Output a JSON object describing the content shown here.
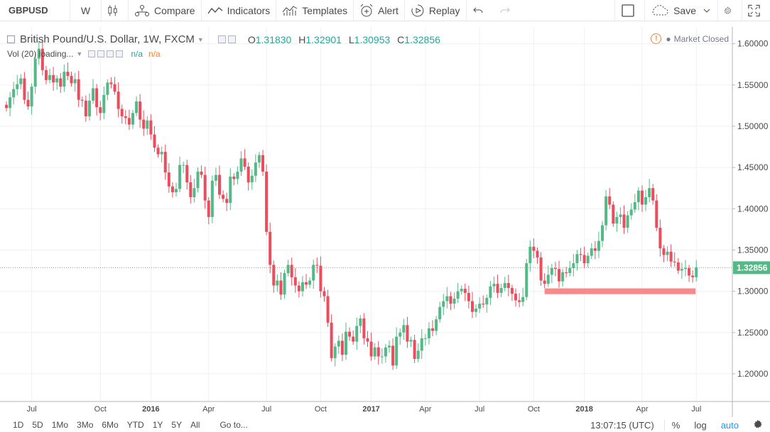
{
  "toolbar": {
    "symbol": "GBPUSD",
    "interval": "W",
    "compare": "Compare",
    "indicators": "Indicators",
    "templates": "Templates",
    "alert": "Alert",
    "replay": "Replay",
    "save": "Save"
  },
  "legend": {
    "title": "British Pound/U.S. Dollar, 1W, FXCM",
    "o_label": "O",
    "o_value": "1.31830",
    "h_label": "H",
    "h_value": "1.32901",
    "l_label": "L",
    "l_value": "1.30953",
    "c_label": "C",
    "c_value": "1.32856"
  },
  "volume": {
    "label": "Vol (20) loading...",
    "value1": "n/a",
    "value2": "n/a"
  },
  "market_status": "Market Closed",
  "bottombar": {
    "ranges": [
      "1D",
      "5D",
      "1Mo",
      "3Mo",
      "6Mo",
      "YTD",
      "1Y",
      "5Y",
      "All"
    ],
    "goto": "Go to...",
    "time": "13:07:15 (UTC)",
    "percent": "%",
    "log": "log",
    "auto": "auto"
  },
  "colors": {
    "up": "#53b987",
    "down": "#eb4d5c",
    "zone": "#f88989",
    "last_price_bg": "#53b987"
  },
  "chart_data": {
    "type": "candlestick",
    "title": "British Pound/U.S. Dollar, 1W, FXCM",
    "ylim": [
      1.175,
      1.61
    ],
    "y_ticks": [
      1.2,
      1.25,
      1.3,
      1.35,
      1.4,
      1.45,
      1.5,
      1.55,
      1.6
    ],
    "x_ticks": [
      "Jul",
      "Oct",
      "2016",
      "Apr",
      "Jul",
      "Oct",
      "2017",
      "Apr",
      "Jul",
      "Oct",
      "2018",
      "Apr",
      "Jul"
    ],
    "last_price": 1.32856,
    "last_price_label": "1.32856",
    "support_zone": {
      "y_low": 1.2965,
      "y_high": 1.3035,
      "from_week": 149,
      "to_week": 190
    },
    "weekly_closes": [
      1.522,
      1.535,
      1.545,
      1.551,
      1.558,
      1.532,
      1.524,
      1.548,
      1.582,
      1.594,
      1.568,
      1.556,
      1.562,
      1.553,
      1.558,
      1.548,
      1.566,
      1.561,
      1.552,
      1.557,
      1.532,
      1.531,
      1.512,
      1.531,
      1.546,
      1.523,
      1.516,
      1.538,
      1.553,
      1.551,
      1.542,
      1.521,
      1.512,
      1.51,
      1.502,
      1.516,
      1.53,
      1.508,
      1.497,
      1.507,
      1.49,
      1.474,
      1.466,
      1.469,
      1.444,
      1.427,
      1.42,
      1.424,
      1.453,
      1.453,
      1.432,
      1.414,
      1.425,
      1.445,
      1.441,
      1.41,
      1.39,
      1.434,
      1.441,
      1.417,
      1.412,
      1.407,
      1.439,
      1.436,
      1.445,
      1.461,
      1.451,
      1.432,
      1.44,
      1.456,
      1.465,
      1.445,
      1.372,
      1.332,
      1.307,
      1.313,
      1.296,
      1.322,
      1.332,
      1.317,
      1.307,
      1.3,
      1.311,
      1.308,
      1.313,
      1.332,
      1.331,
      1.3,
      1.294,
      1.262,
      1.219,
      1.233,
      1.24,
      1.223,
      1.251,
      1.245,
      1.239,
      1.258,
      1.267,
      1.243,
      1.239,
      1.221,
      1.232,
      1.221,
      1.221,
      1.232,
      1.234,
      1.21,
      1.245,
      1.25,
      1.259,
      1.239,
      1.241,
      1.218,
      1.228,
      1.243,
      1.243,
      1.255,
      1.252,
      1.266,
      1.281,
      1.288,
      1.294,
      1.285,
      1.291,
      1.3,
      1.303,
      1.298,
      1.288,
      1.275,
      1.279,
      1.285,
      1.284,
      1.292,
      1.306,
      1.309,
      1.298,
      1.304,
      1.31,
      1.304,
      1.297,
      1.289,
      1.287,
      1.293,
      1.334,
      1.354,
      1.349,
      1.341,
      1.313,
      1.309,
      1.32,
      1.328,
      1.327,
      1.312,
      1.323,
      1.322,
      1.328,
      1.334,
      1.345,
      1.344,
      1.334,
      1.343,
      1.352,
      1.349,
      1.361,
      1.38,
      1.415,
      1.405,
      1.382,
      1.39,
      1.393,
      1.377,
      1.392,
      1.399,
      1.408,
      1.422,
      1.405,
      1.414,
      1.425,
      1.41,
      1.377,
      1.352,
      1.344,
      1.348,
      1.336,
      1.335,
      1.325,
      1.327,
      1.328,
      1.319,
      1.317,
      1.329
    ]
  }
}
